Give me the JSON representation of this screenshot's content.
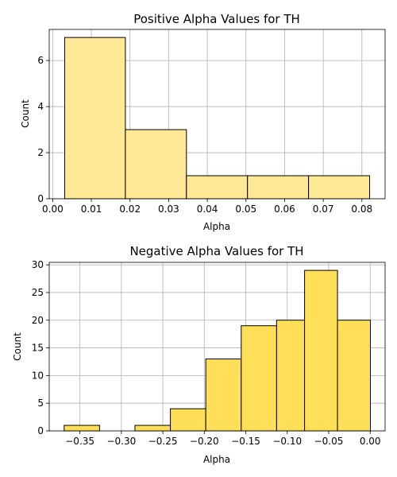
{
  "chart_data": [
    {
      "type": "bar",
      "title": "Positive Alpha Values for TH",
      "xlabel": "Alpha",
      "ylabel": "Count",
      "bins": [
        {
          "x0": 0.0031,
          "x1": 0.0188,
          "count": 7
        },
        {
          "x0": 0.0188,
          "x1": 0.0346,
          "count": 3
        },
        {
          "x0": 0.0346,
          "x1": 0.0504,
          "count": 1
        },
        {
          "x0": 0.0504,
          "x1": 0.0662,
          "count": 1
        },
        {
          "x0": 0.0662,
          "x1": 0.082,
          "count": 1
        }
      ],
      "xlim": [
        -0.0009,
        0.086
      ],
      "ylim": [
        0,
        7.35
      ],
      "xticks": [
        0.0,
        0.01,
        0.02,
        0.03,
        0.04,
        0.05,
        0.06,
        0.07,
        0.08
      ],
      "xtick_labels": [
        "0.00",
        "0.01",
        "0.02",
        "0.03",
        "0.04",
        "0.05",
        "0.06",
        "0.07",
        "0.08"
      ],
      "yticks": [
        0,
        2,
        4,
        6
      ],
      "ytick_labels": [
        "0",
        "2",
        "4",
        "6"
      ],
      "grid": true,
      "bar_color": "#ffe896",
      "edge_color": "#000000"
    },
    {
      "type": "bar",
      "title": "Negative Alpha Values for TH",
      "xlabel": "Alpha",
      "ylabel": "Count",
      "bins": [
        {
          "x0": -0.369,
          "x1": -0.3263,
          "count": 1
        },
        {
          "x0": -0.3263,
          "x1": -0.2836,
          "count": 0
        },
        {
          "x0": -0.2836,
          "x1": -0.2409,
          "count": 1
        },
        {
          "x0": -0.2409,
          "x1": -0.1982,
          "count": 4
        },
        {
          "x0": -0.1982,
          "x1": -0.1555,
          "count": 13
        },
        {
          "x0": -0.1555,
          "x1": -0.1128,
          "count": 19
        },
        {
          "x0": -0.1128,
          "x1": -0.0791,
          "count": 20
        },
        {
          "x0": -0.0791,
          "x1": -0.0394,
          "count": 29
        },
        {
          "x0": -0.0394,
          "x1": 0.0003,
          "count": 20
        }
      ],
      "xlim": [
        -0.387,
        0.018
      ],
      "ylim": [
        0,
        30.45
      ],
      "xticks": [
        -0.35,
        -0.3,
        -0.25,
        -0.2,
        -0.15,
        -0.1,
        -0.05,
        0.0
      ],
      "xtick_labels": [
        "−0.35",
        "−0.30",
        "−0.25",
        "−0.20",
        "−0.15",
        "−0.10",
        "−0.05",
        "0.00"
      ],
      "yticks": [
        0,
        5,
        10,
        15,
        20,
        25,
        30
      ],
      "ytick_labels": [
        "0",
        "5",
        "10",
        "15",
        "20",
        "25",
        "30"
      ],
      "grid": true,
      "bar_color": "#ffdf57",
      "edge_color": "#000000"
    }
  ]
}
